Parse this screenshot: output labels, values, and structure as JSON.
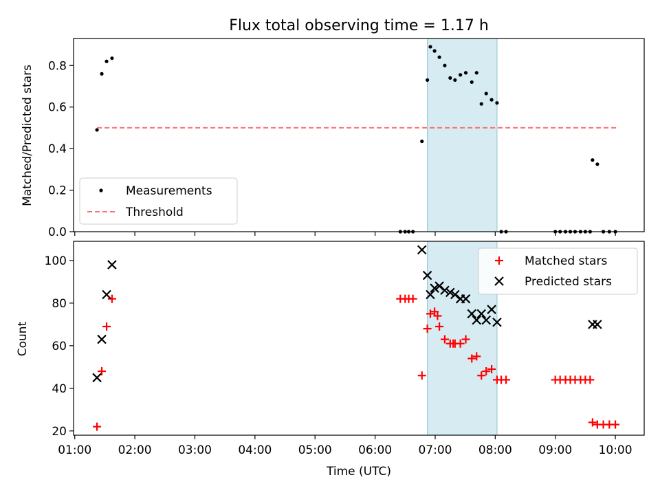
{
  "title": "Flux total observing time = 1.17 h",
  "chart_data": [
    {
      "type": "scatter",
      "panel": "top",
      "title": "Flux total observing time = 1.17 h",
      "xlabel": "",
      "ylabel": "Matched/Predicted stars",
      "xlim": [
        0.98,
        10.48
      ],
      "ylim": [
        0.0,
        0.93
      ],
      "yticks": [
        "0.0",
        "0.2",
        "0.4",
        "0.6",
        "0.8"
      ],
      "yticks_values": [
        0.0,
        0.2,
        0.4,
        0.6,
        0.8
      ],
      "shaded_span": [
        6.87,
        8.03
      ],
      "shaded_color": "#add8e6",
      "legend_position": "lower-left",
      "legend": [
        "Measurements",
        "Threshold"
      ],
      "series": [
        {
          "name": "Measurements",
          "marker": "dot",
          "color": "#000000",
          "x": [
            1.37,
            1.45,
            1.53,
            1.62,
            6.42,
            6.5,
            6.56,
            6.63,
            6.78,
            6.87,
            6.92,
            6.99,
            7.07,
            7.16,
            7.25,
            7.33,
            7.42,
            7.51,
            7.61,
            7.69,
            7.77,
            7.85,
            7.94,
            8.03,
            8.1,
            8.18,
            9.0,
            9.08,
            9.17,
            9.25,
            9.33,
            9.42,
            9.5,
            9.58,
            9.62,
            9.7,
            9.8,
            9.9,
            10.0
          ],
          "y": [
            0.49,
            0.76,
            0.82,
            0.835,
            0.0,
            0.0,
            0.0,
            0.0,
            0.435,
            0.73,
            0.89,
            0.87,
            0.84,
            0.8,
            0.74,
            0.73,
            0.755,
            0.765,
            0.72,
            0.765,
            0.615,
            0.665,
            0.635,
            0.62,
            0.0,
            0.0,
            0.0,
            0.0,
            0.0,
            0.0,
            0.0,
            0.0,
            0.0,
            0.0,
            0.345,
            0.325,
            0.0,
            0.0,
            0.0
          ]
        },
        {
          "name": "Threshold",
          "marker": "dashed-line",
          "color": "#ff7070",
          "x": [
            1.37,
            10.06
          ],
          "y": [
            0.5,
            0.5
          ]
        }
      ]
    },
    {
      "type": "scatter",
      "panel": "bottom",
      "xlabel": "Time (UTC)",
      "ylabel": "Count",
      "xlim": [
        0.98,
        10.48
      ],
      "ylim": [
        18,
        109
      ],
      "xticks": [
        "01:00",
        "02:00",
        "03:00",
        "04:00",
        "05:00",
        "06:00",
        "07:00",
        "08:00",
        "09:00",
        "10:00"
      ],
      "xticks_values": [
        1,
        2,
        3,
        4,
        5,
        6,
        7,
        8,
        9,
        10
      ],
      "yticks": [
        "20",
        "40",
        "60",
        "80",
        "100"
      ],
      "yticks_values": [
        20,
        40,
        60,
        80,
        100
      ],
      "shaded_span": [
        6.87,
        8.03
      ],
      "shaded_color": "#add8e6",
      "legend_position": "upper-right",
      "legend": [
        "Matched stars",
        "Predicted stars"
      ],
      "series": [
        {
          "name": "Matched stars",
          "marker": "plus",
          "color": "#ff0000",
          "x": [
            1.37,
            1.45,
            1.53,
            1.62,
            6.42,
            6.5,
            6.56,
            6.63,
            6.78,
            6.87,
            6.92,
            6.99,
            7.04,
            7.07,
            7.16,
            7.25,
            7.3,
            7.33,
            7.42,
            7.51,
            7.61,
            7.69,
            7.77,
            7.85,
            7.94,
            8.03,
            8.1,
            8.18,
            9.0,
            9.08,
            9.17,
            9.25,
            9.33,
            9.42,
            9.5,
            9.58,
            9.62,
            9.7,
            9.8,
            9.9,
            10.0
          ],
          "y": [
            22,
            48,
            69,
            82,
            82,
            82,
            82,
            82,
            46,
            68,
            75,
            76,
            74,
            69,
            63,
            61,
            61,
            61,
            61,
            63,
            54,
            55,
            46,
            48,
            49,
            44,
            44,
            44,
            44,
            44,
            44,
            44,
            44,
            44,
            44,
            44,
            24,
            23,
            23,
            23,
            23
          ]
        },
        {
          "name": "Predicted stars",
          "marker": "x",
          "color": "#000000",
          "x": [
            1.37,
            1.45,
            1.53,
            1.62,
            6.78,
            6.87,
            6.92,
            6.99,
            7.07,
            7.16,
            7.25,
            7.33,
            7.42,
            7.51,
            7.61,
            7.69,
            7.77,
            7.85,
            7.94,
            8.03,
            9.62,
            9.7
          ],
          "y": [
            45,
            63,
            84,
            98,
            105,
            93,
            84,
            87,
            88,
            86,
            85,
            84,
            82,
            82,
            75,
            72,
            75,
            72,
            77,
            71,
            70,
            70
          ]
        }
      ]
    }
  ]
}
